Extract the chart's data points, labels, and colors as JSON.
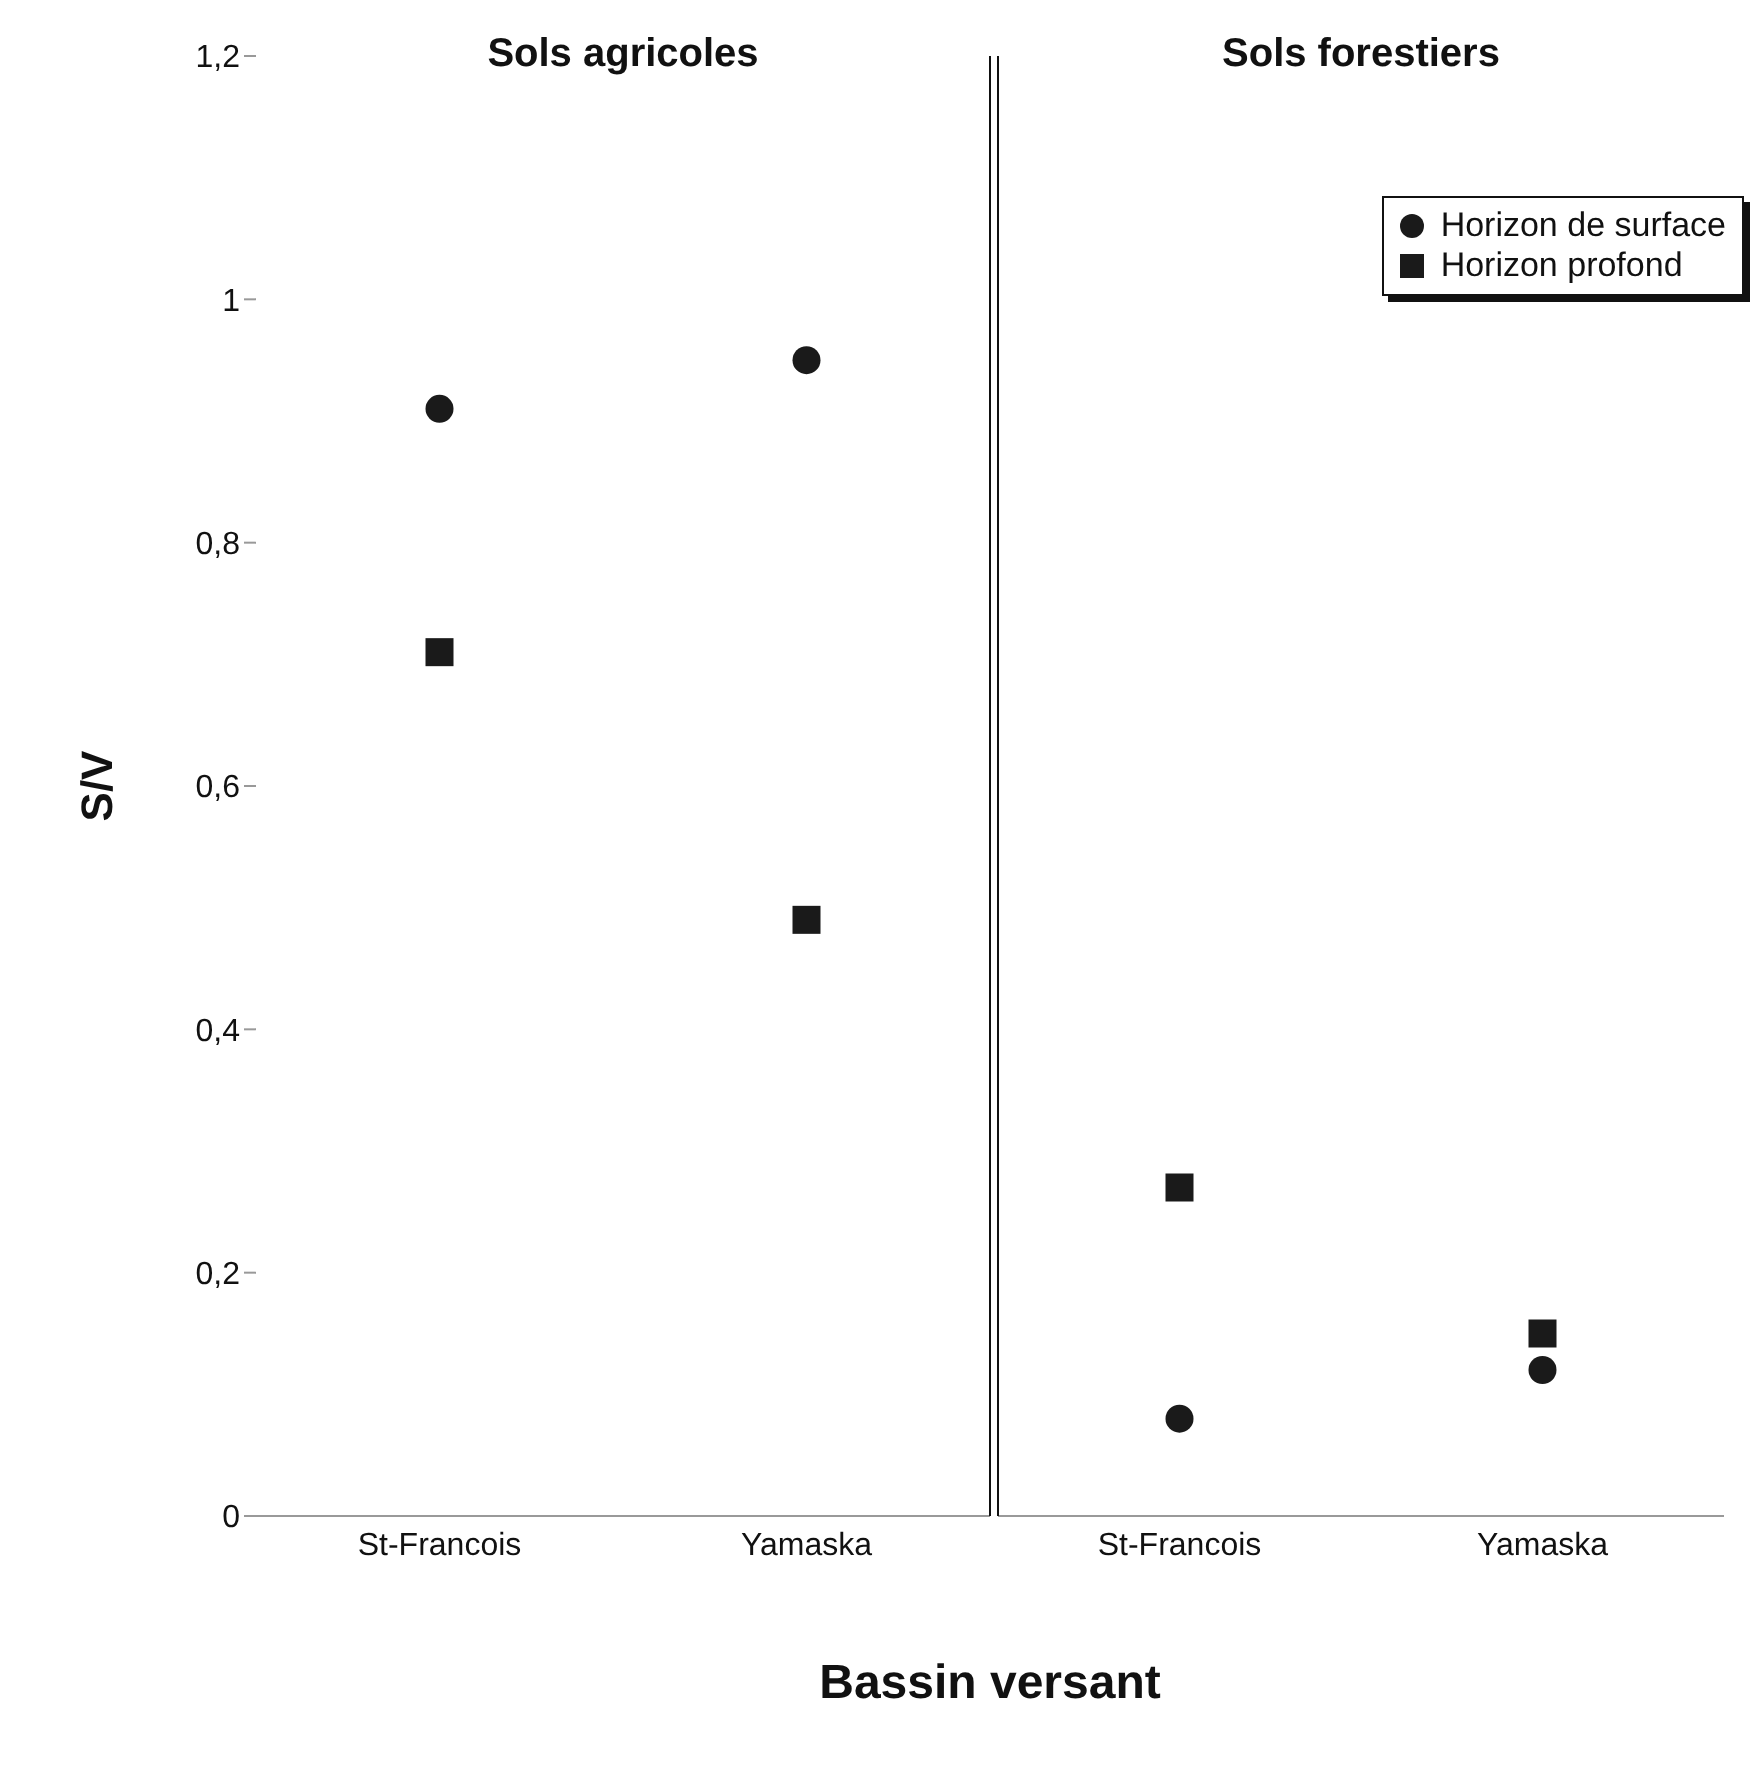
{
  "chart_data": [
    {
      "type": "scatter",
      "title": "Sols agricoles",
      "xlabel": "Bassin versant",
      "ylabel": "S/V",
      "categories": [
        "St-Francois",
        "Yamaska"
      ],
      "series": [
        {
          "color": "#1a1a1a",
          "marker": "circle",
          "values": [
            0.91,
            0.95
          ]
        },
        {
          "color": "#1a1a1a",
          "marker": "square",
          "values": [
            0.71,
            0.49
          ]
        }
      ],
      "ylim": [
        0,
        1.2
      ],
      "yticks": [
        0,
        {
          "value": 0.2,
          "label": "0,2"
        },
        {
          "value": 0.4,
          "label": "0,4"
        },
        {
          "value": 0.6,
          "label": "0,6"
        },
        {
          "value": 0.8,
          "label": "0,8"
        },
        1,
        {
          "value": 1.2,
          "label": "1,2"
        }
      ],
      "grid": false
    },
    {
      "type": "scatter",
      "title": "Sols forestiers",
      "categories": [
        "St-Francois",
        "Yamaska"
      ],
      "series": [
        {
          "name": "Horizon de surface",
          "color": "#1a1a1a",
          "marker": "circle",
          "values": [
            0.08,
            0.12
          ]
        },
        {
          "name": "Horizon profond",
          "color": "#1a1a1a",
          "marker": "square",
          "values": [
            0.27,
            0.15
          ]
        }
      ],
      "ylim": [
        0,
        1.2
      ],
      "tick_labels": "x",
      "grid": false,
      "legend": "top right"
    }
  ]
}
